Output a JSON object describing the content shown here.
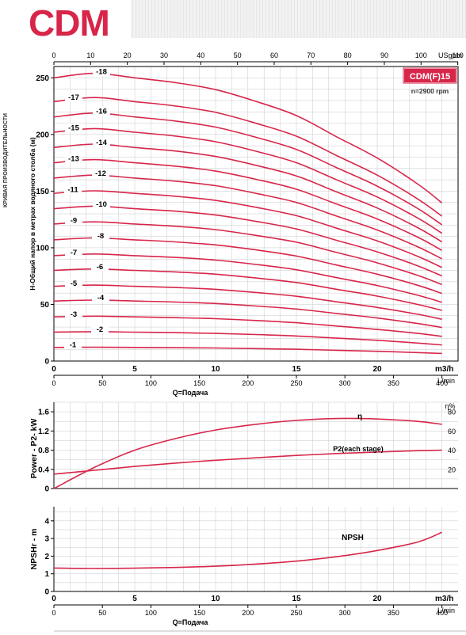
{
  "brand": "CDM",
  "side_note": "КРИВАЯ ПРОИЗВОДИТЕЛЬНОСТИ",
  "chart_data": [
    {
      "type": "line",
      "model_label": "CDM(F)15",
      "speed_label": "n=2900 rpm",
      "ylabel": "H-Общий напор в метрах водяного столба (м)",
      "xlabel_m3h": "m3/h",
      "xlabel_lmin": "L/min",
      "xlabel_usgpm": "USgpm",
      "q_label": "Q=Подача",
      "xlim_m3h": [
        0,
        25
      ],
      "ylim": [
        0,
        260
      ],
      "x_ticks_m3h": [
        "0",
        "5",
        "10",
        "15",
        "20"
      ],
      "x_ticks_lmin": [
        "0",
        "50",
        "100",
        "150",
        "200",
        "250",
        "300",
        "350",
        "400"
      ],
      "x_ticks_usgpm": [
        "0",
        "10",
        "20",
        "30",
        "40",
        "50",
        "60",
        "70",
        "80",
        "90",
        "100",
        "110"
      ],
      "y_ticks": [
        "0",
        "50",
        "100",
        "150",
        "200",
        "250"
      ],
      "grid": true,
      "x": [
        0,
        2.5,
        5,
        7.5,
        10,
        12.5,
        15,
        17.5,
        20,
        22.5,
        24
      ],
      "head_stage_1": [
        12.0,
        12.2,
        12.0,
        11.8,
        11.5,
        11.0,
        10.4,
        9.5,
        8.6,
        7.5,
        6.7
      ],
      "series": [
        {
          "name": "-1",
          "values": [
            12.0,
            12.2,
            12.0,
            11.8,
            11.5,
            11.0,
            10.4,
            9.5,
            8.6,
            7.5,
            6.7
          ]
        },
        {
          "name": "-2",
          "values": [
            25.5,
            25.9,
            25.5,
            25.1,
            24.4,
            23.4,
            22.1,
            20.2,
            18.3,
            15.9,
            14.2
          ]
        },
        {
          "name": "-3",
          "values": [
            39.0,
            39.6,
            39.0,
            38.3,
            37.4,
            35.8,
            33.8,
            30.9,
            27.9,
            24.4,
            21.8
          ]
        },
        {
          "name": "-4",
          "values": [
            53.0,
            53.8,
            53.0,
            52.1,
            50.8,
            48.6,
            45.9,
            42.0,
            38.0,
            33.1,
            29.6
          ]
        },
        {
          "name": "-5",
          "values": [
            66.0,
            67.0,
            66.0,
            64.9,
            63.3,
            60.5,
            57.2,
            52.3,
            47.3,
            41.3,
            36.9
          ]
        },
        {
          "name": "-6",
          "values": [
            80.0,
            81.3,
            80.0,
            78.7,
            76.7,
            73.3,
            69.3,
            63.3,
            57.3,
            50.0,
            44.7
          ]
        },
        {
          "name": "-7",
          "values": [
            93.0,
            94.5,
            93.0,
            91.5,
            89.1,
            85.3,
            80.6,
            73.6,
            66.7,
            58.1,
            51.9
          ]
        },
        {
          "name": "-8",
          "values": [
            107.0,
            108.7,
            107.0,
            105.2,
            102.5,
            98.1,
            92.7,
            84.7,
            76.7,
            66.9,
            59.7
          ]
        },
        {
          "name": "-9",
          "values": [
            121.0,
            122.9,
            121.0,
            119.0,
            116.0,
            110.9,
            104.9,
            95.8,
            86.7,
            75.6,
            67.5
          ]
        },
        {
          "name": "-10",
          "values": [
            134.5,
            136.7,
            134.5,
            132.3,
            128.9,
            123.3,
            116.6,
            106.5,
            96.4,
            84.1,
            75.1
          ]
        },
        {
          "name": "-11",
          "values": [
            148.0,
            150.3,
            148.0,
            145.5,
            141.8,
            135.7,
            128.3,
            117.2,
            106.1,
            92.5,
            82.6
          ]
        },
        {
          "name": "-12",
          "values": [
            161.5,
            164.1,
            161.5,
            158.8,
            154.8,
            148.0,
            140.0,
            127.9,
            115.7,
            100.9,
            90.2
          ]
        },
        {
          "name": "-13",
          "values": [
            175.0,
            177.8,
            175.0,
            172.1,
            167.7,
            160.4,
            151.7,
            138.5,
            125.4,
            109.4,
            97.7
          ]
        },
        {
          "name": "-14",
          "values": [
            188.5,
            191.5,
            188.5,
            185.4,
            180.6,
            172.8,
            163.4,
            149.2,
            135.1,
            117.8,
            105.2
          ]
        },
        {
          "name": "-15",
          "values": [
            202.0,
            205.2,
            202.0,
            198.6,
            193.6,
            185.2,
            175.1,
            159.9,
            144.8,
            126.3,
            112.8
          ]
        },
        {
          "name": "-16",
          "values": [
            215.5,
            218.9,
            215.5,
            211.9,
            206.5,
            197.5,
            186.8,
            170.6,
            154.4,
            134.7,
            120.3
          ]
        },
        {
          "name": "-17",
          "values": [
            229.0,
            232.6,
            229.0,
            225.2,
            219.5,
            209.9,
            198.5,
            181.3,
            164.1,
            143.1,
            127.9
          ]
        },
        {
          "name": "-18",
          "values": [
            250.0,
            254.0,
            250.0,
            245.8,
            239.6,
            229.2,
            216.7,
            197.9,
            179.2,
            156.3,
            139.6
          ]
        }
      ]
    },
    {
      "type": "line",
      "ylabel": "Power - P2- kW",
      "y2label": "η%",
      "xlim_m3h": [
        0,
        25
      ],
      "ylim": [
        0,
        1.8
      ],
      "y2lim": [
        0,
        90
      ],
      "y_ticks": [
        "0",
        "0.4",
        "0.8",
        "1.2",
        "1.6"
      ],
      "y2_ticks": [
        "20",
        "40",
        "60",
        "80"
      ],
      "grid": true,
      "x": [
        0,
        2.5,
        5,
        7.5,
        10,
        12.5,
        15,
        17.5,
        20,
        22.5,
        24
      ],
      "series": [
        {
          "name": "η",
          "axis": "right",
          "values": [
            0,
            22,
            40,
            52,
            61,
            67,
            71,
            73,
            72.5,
            70,
            67
          ]
        },
        {
          "name": "P2(each stage)",
          "axis": "left",
          "values": [
            0.3,
            0.38,
            0.46,
            0.53,
            0.59,
            0.64,
            0.69,
            0.73,
            0.76,
            0.79,
            0.8
          ]
        }
      ]
    },
    {
      "type": "line",
      "ylabel": "NPSHr - m",
      "xlabel_m3h": "m3/h",
      "xlabel_lmin": "L/min",
      "q_label": "Q=Подача",
      "xlim_m3h": [
        0,
        25
      ],
      "ylim": [
        0,
        4.8
      ],
      "y_ticks": [
        "0",
        "1",
        "2",
        "3",
        "4"
      ],
      "x_ticks_m3h": [
        "0",
        "5",
        "10",
        "15",
        "20"
      ],
      "x_ticks_lmin": [
        "0",
        "50",
        "100",
        "150",
        "200",
        "250",
        "300",
        "350",
        "400"
      ],
      "grid": true,
      "x": [
        0,
        2.5,
        5,
        7.5,
        10,
        12.5,
        15,
        17.5,
        20,
        22.5,
        24
      ],
      "series": [
        {
          "name": "NPSH",
          "values": [
            1.33,
            1.3,
            1.32,
            1.36,
            1.43,
            1.55,
            1.72,
            1.97,
            2.32,
            2.8,
            3.35
          ]
        }
      ]
    }
  ],
  "colors": {
    "curve": "#d7264a",
    "grid": "#c8c8c8",
    "axis": "#000000",
    "brand": "#d7264a"
  }
}
